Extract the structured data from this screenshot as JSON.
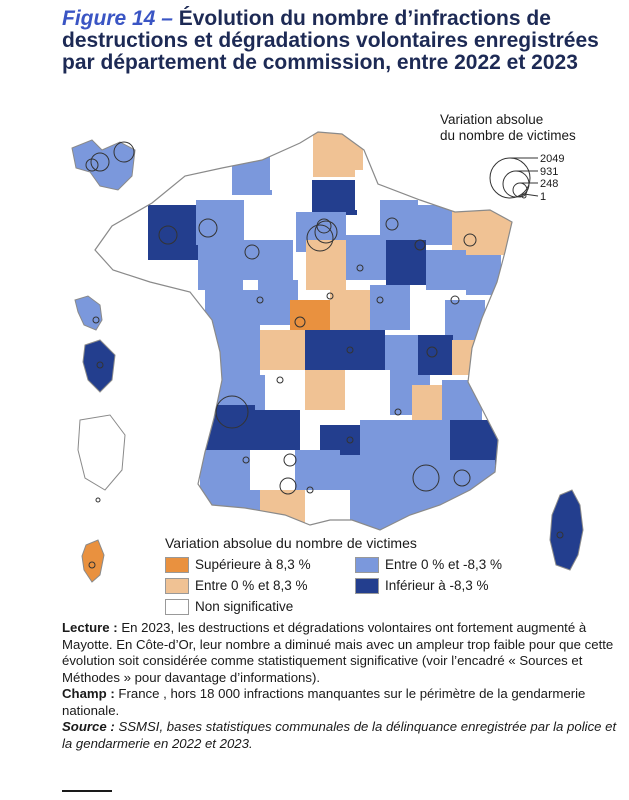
{
  "title": {
    "figure_label": "Figure 14 –",
    "text": "Évolution du nombre d’infractions de destructions et dégradations volontaires enregistrées par département de commission, entre 2022 et 2023"
  },
  "bubble_legend": {
    "title_line1": "Variation absolue",
    "title_line2": "du nombre de victimes",
    "values": [
      "2049",
      "931",
      "248",
      "1"
    ]
  },
  "fill_legend": {
    "title": "Variation absolue du nombre de victimes",
    "items": [
      {
        "label": "Supérieure à 8,3 %",
        "color": "#e9913f"
      },
      {
        "label": "Entre 0 % et -8,3 %",
        "color": "#7b98dc"
      },
      {
        "label": "Entre 0 % et 8,3 %",
        "color": "#f0c294"
      },
      {
        "label": "Inférieur à -8,3 %",
        "color": "#233e8e"
      },
      {
        "label": "Non significative",
        "color": "#ffffff"
      }
    ]
  },
  "notes": {
    "lecture_label": "Lecture :",
    "lecture_text": "En 2023, les destructions et dégradations volontaires ont fortement augmenté à Mayotte. En Côte-d’Or, leur nombre a diminué mais avec un ampleur trop faible pour que cette évolution soit considérée comme statistiquement significative (voir l’encadré « Sources et Méthodes » pour davantage d’informations).",
    "champ_label": "Champ :",
    "champ_text": "France , hors 18 000 infractions manquantes sur le périmètre de la gendarmerie nationale.",
    "source_label": "Source :",
    "source_text": "SSMSI, bases statistiques communales de la délinquance enregistrée par la police et la gendarmerie en 2022 et 2023."
  },
  "colors": {
    "high_increase": "#e9913f",
    "low_increase": "#f0c294",
    "low_decrease": "#7b98dc",
    "high_decrease": "#233e8e",
    "not_significant": "#ffffff",
    "title": "#1d2a55",
    "figure_label": "#3a55c4"
  }
}
